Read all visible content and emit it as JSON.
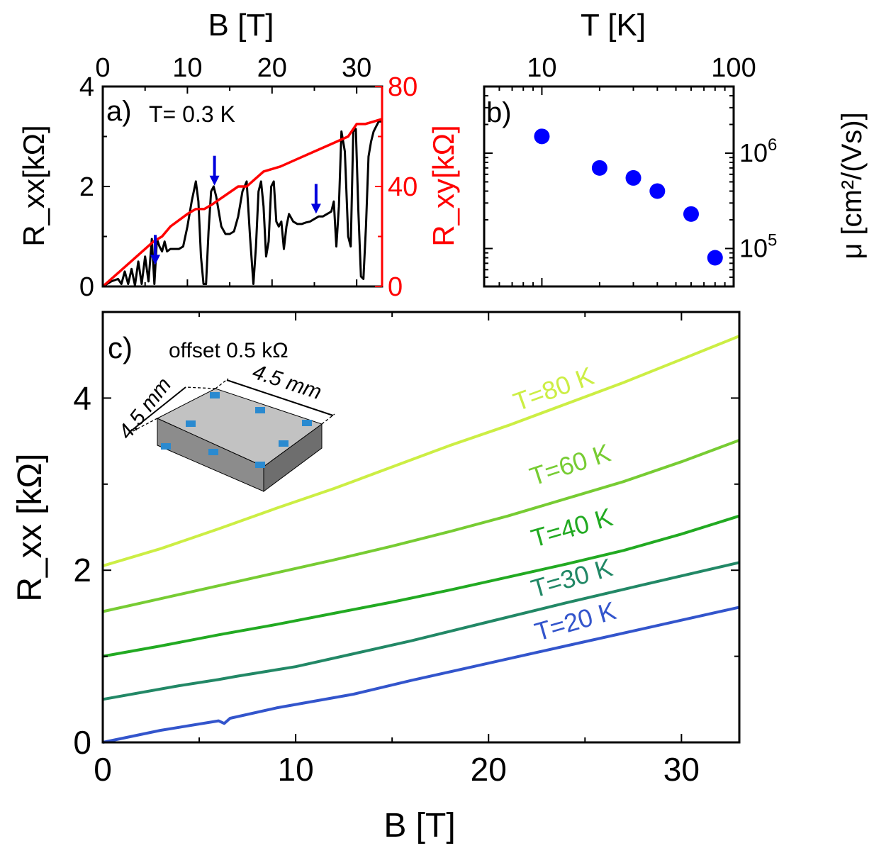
{
  "chart_data": [
    {
      "panel": "a)",
      "type": "line",
      "condition": "T= 0.3 K",
      "xlabel": "B [T]",
      "ylabel_left": "R_xx[kΩ]",
      "ylabel_right": "R_xy[kΩ]",
      "xlim": [
        0,
        33
      ],
      "ylim_left": [
        0,
        4
      ],
      "ylim_right": [
        0,
        80
      ],
      "xticks": [
        "0",
        "10",
        "20",
        "30"
      ],
      "yticks_left": [
        "0",
        "2",
        "4"
      ],
      "yticks_right": [
        "0",
        "40",
        "80"
      ],
      "colors": {
        "rxx": "#000000",
        "rxy": "#ff0000",
        "arrows": "#0000dd"
      },
      "series": [
        {
          "name": "R_xx",
          "axis": "left",
          "x": [
            0,
            1,
            1.8,
            2.2,
            2.6,
            3.0,
            3.4,
            3.8,
            4.2,
            4.6,
            5.0,
            5.4,
            5.8,
            6.1,
            6.4,
            6.7,
            7.0,
            7.3,
            7.6,
            8.0,
            8.5,
            9.0,
            9.5,
            10.0,
            10.5,
            11.0,
            11.3,
            11.6,
            11.9,
            12.2,
            12.5,
            12.8,
            13.1,
            13.4,
            13.7,
            14.0,
            14.5,
            15.0,
            15.5,
            16.0,
            16.5,
            17.0,
            17.4,
            17.8,
            18.1,
            18.4,
            18.7,
            19.0,
            19.3,
            19.6,
            19.9,
            20.2,
            20.5,
            20.8,
            21.1,
            21.4,
            21.7,
            22.0,
            22.5,
            23.0,
            23.5,
            24.0,
            24.5,
            25.0,
            25.5,
            26.0,
            26.5,
            27.0,
            27.3,
            27.6,
            27.9,
            28.2,
            28.6,
            29.0,
            29.3,
            29.6,
            29.9,
            30.2,
            30.5,
            30.8,
            31.1,
            31.4,
            31.7,
            32.0,
            32.3,
            32.6,
            33.0
          ],
          "values": [
            0,
            0.1,
            0.15,
            0.05,
            0.3,
            0.05,
            0.35,
            0.02,
            0.5,
            0.05,
            0.6,
            0.1,
            0.95,
            0.05,
            0.95,
            0.8,
            0.7,
            0.9,
            0.7,
            0.75,
            0.75,
            0.75,
            0.8,
            1.2,
            1.7,
            2.1,
            1.7,
            0.6,
            0.05,
            0.05,
            1.1,
            1.9,
            2.0,
            1.8,
            1.5,
            1.2,
            1.05,
            1.05,
            1.1,
            1.4,
            1.9,
            2.1,
            1.0,
            0.05,
            0.8,
            1.9,
            2.1,
            1.6,
            0.6,
            0.9,
            2.0,
            2.1,
            1.3,
            1.2,
            1.3,
            0.75,
            1.2,
            1.45,
            1.3,
            1.25,
            1.25,
            1.28,
            1.3,
            1.35,
            1.4,
            1.4,
            1.45,
            1.5,
            1.7,
            0.8,
            1.6,
            3.1,
            2.7,
            1.0,
            0.8,
            3.1,
            3.15,
            1.5,
            0.2,
            0.15,
            1.2,
            2.6,
            2.9,
            3.1,
            3.2,
            3.3,
            3.3
          ]
        },
        {
          "name": "R_xy",
          "axis": "right",
          "x": [
            0,
            2,
            4,
            6,
            7,
            8,
            10,
            11,
            12,
            13,
            16,
            17,
            19,
            21,
            23,
            25,
            27,
            29,
            30,
            31,
            32,
            33
          ],
          "values": [
            0,
            6,
            12,
            18,
            20,
            24,
            29,
            31,
            31,
            33,
            40,
            40,
            46,
            48,
            51,
            54,
            57,
            60,
            65,
            65,
            66,
            67
          ]
        }
      ],
      "arrows_x": [
        6.2,
        13.2,
        25.2
      ]
    },
    {
      "panel": "b)",
      "type": "scatter",
      "xlabel": "T [K]",
      "ylabel": "μ [cm²/(Vs)]",
      "xscale": "log",
      "yscale": "log",
      "xlim": [
        5,
        100
      ],
      "ylim": [
        40000,
        5000000
      ],
      "xticks": [
        "10",
        "100"
      ],
      "yticks": [
        {
          "base": "10",
          "exp": "5"
        },
        {
          "base": "10",
          "exp": "6"
        }
      ],
      "color": "#0000ff",
      "x": [
        10,
        20,
        30,
        40,
        60,
        80
      ],
      "values": [
        1500000,
        700000,
        550000,
        400000,
        230000,
        80000
      ]
    },
    {
      "panel": "c)",
      "type": "line",
      "offset_note": "offset 0.5 kΩ",
      "xlabel": "B [T]",
      "ylabel": "R_xx [kΩ]",
      "xlim": [
        0,
        33
      ],
      "ylim": [
        0,
        5
      ],
      "xticks": [
        "0",
        "10",
        "20",
        "30"
      ],
      "yticks": [
        "0",
        "2",
        "4"
      ],
      "inset": {
        "dim_x": "4.5 mm",
        "dim_y": "4.5 mm"
      },
      "series": [
        {
          "name": "T=20 K",
          "color": "#3355cc",
          "x": [
            0,
            3,
            6,
            6.3,
            6.6,
            9,
            12,
            13,
            16,
            20,
            24,
            28,
            33
          ],
          "values": [
            0,
            0.14,
            0.25,
            0.22,
            0.28,
            0.4,
            0.52,
            0.56,
            0.72,
            0.92,
            1.12,
            1.32,
            1.57
          ]
        },
        {
          "name": "T=30 K",
          "color": "#228866",
          "x": [
            0,
            4,
            6,
            7,
            10,
            13,
            16,
            20,
            24,
            28,
            33
          ],
          "values": [
            0.5,
            0.66,
            0.73,
            0.77,
            0.88,
            1.03,
            1.18,
            1.4,
            1.62,
            1.83,
            2.09
          ]
        },
        {
          "name": "T=40 K",
          "color": "#22aa22",
          "x": [
            0,
            3,
            6,
            9,
            12,
            15,
            18,
            21,
            24,
            27,
            30,
            33
          ],
          "values": [
            1.0,
            1.12,
            1.25,
            1.37,
            1.5,
            1.63,
            1.77,
            1.92,
            2.07,
            2.23,
            2.42,
            2.63
          ]
        },
        {
          "name": "T=60 K",
          "color": "#77cc33",
          "x": [
            0,
            3,
            6,
            9,
            12,
            15,
            18,
            21,
            24,
            27,
            30,
            33
          ],
          "values": [
            1.52,
            1.67,
            1.82,
            1.97,
            2.12,
            2.28,
            2.45,
            2.63,
            2.83,
            3.03,
            3.26,
            3.51
          ]
        },
        {
          "name": "T=80 K",
          "color": "#ccee44",
          "x": [
            0,
            3,
            6,
            9,
            12,
            15,
            18,
            21,
            24,
            27,
            30,
            33
          ],
          "values": [
            2.05,
            2.25,
            2.48,
            2.72,
            2.95,
            3.2,
            3.45,
            3.68,
            3.93,
            4.18,
            4.45,
            4.72
          ]
        }
      ]
    }
  ]
}
